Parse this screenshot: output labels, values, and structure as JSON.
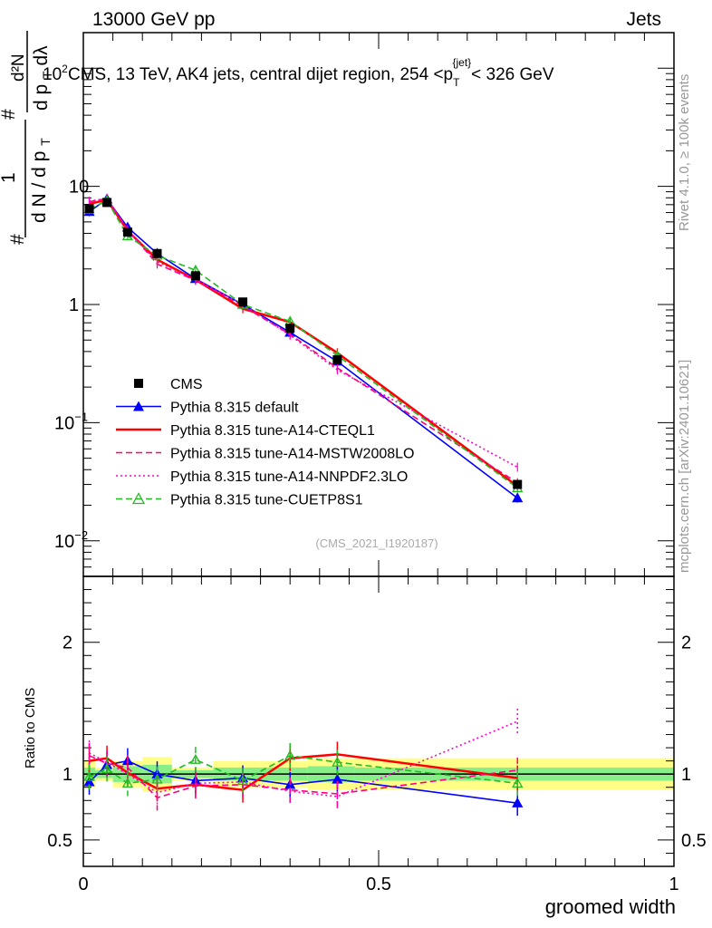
{
  "header": {
    "left": "13000 GeV pp",
    "right": "Jets"
  },
  "side_labels": {
    "rivet": "Rivet 4.1.0, ≥ 100k events",
    "mcplots": "mcplots.cern.ch [arXiv:2401.10621]"
  },
  "chart_data": {
    "type": "line",
    "title": "CMS, 13 TeV, AK4 jets, central dijet region, 254 <p_T^{jet}< 326 GeV",
    "title_parts": {
      "prefix": "CMS, 13 TeV, AK4 jets, central dijet region, 254 <p",
      "sub": "T",
      "sup": "{jet}",
      "suffix": "< 326 GeV"
    },
    "ylabel_top": {
      "numerator": "1",
      "denominator": "d N / d p",
      "denominator_sub": "T",
      "hash": "#",
      "dnum": "d²N",
      "dden": "d p",
      "dden_sub": "T",
      "dden_tail": " dλ"
    },
    "ylabel_ratio": "Ratio to CMS",
    "xlabel": "groomed width",
    "analysis_id": "(CMS_2021_I1920187)",
    "xlim": [
      0,
      1
    ],
    "ylim_log": [
      0.005,
      200
    ],
    "ratio_ylim": [
      0.3,
      2.5
    ],
    "x_ticks": [
      {
        "value": 0,
        "label": "0"
      },
      {
        "value": 0.5,
        "label": "0.5"
      },
      {
        "value": 1,
        "label": "1"
      }
    ],
    "y_ticks": [
      {
        "value": 0.01,
        "base": "10",
        "exp": "−2"
      },
      {
        "value": 0.1,
        "base": "10",
        "exp": "−1"
      },
      {
        "value": 1,
        "base": "1",
        "exp": ""
      },
      {
        "value": 10,
        "base": "10",
        "exp": ""
      },
      {
        "value": 100,
        "base": "10",
        "exp": "2"
      }
    ],
    "ratio_y_ticks": [
      {
        "value": 0.5,
        "label": "0.5"
      },
      {
        "value": 1,
        "label": "1"
      },
      {
        "value": 2,
        "label": "2"
      }
    ],
    "x_edges": [
      0,
      0.02,
      0.05,
      0.1,
      0.15,
      0.22,
      0.3,
      0.38,
      0.46,
      1.0
    ],
    "x": [
      0.01,
      0.04,
      0.075,
      0.125,
      0.19,
      0.27,
      0.35,
      0.43,
      0.735
    ],
    "band_green_halfwidth": [
      0.05,
      0.03,
      0.06,
      0.07,
      0.03,
      0.05,
      0.05,
      0.06,
      0.05
    ],
    "band_yellow_halfwidth": [
      0.1,
      0.05,
      0.1,
      0.13,
      0.05,
      0.1,
      0.1,
      0.12,
      0.12
    ],
    "data": {
      "name": "CMS",
      "values": [
        6.5,
        7.3,
        4.1,
        2.7,
        1.75,
        1.05,
        0.63,
        0.34,
        0.03
      ]
    },
    "series": [
      {
        "name": "Pythia 8.315 default",
        "color": "#0000ff",
        "style": "solid",
        "marker": "triangle",
        "values": [
          6.1,
          7.8,
          4.5,
          2.7,
          1.65,
          1.0,
          0.58,
          0.33,
          0.023
        ]
      },
      {
        "name": "Pythia 8.315 tune-A14-CTEQL1",
        "color": "#ff0000",
        "style": "solid",
        "marker": "none",
        "values": [
          7.1,
          7.7,
          4.2,
          2.4,
          1.62,
          0.92,
          0.71,
          0.39,
          0.029
        ]
      },
      {
        "name": "Pythia 8.315 tune-A14-MSTW2008LO",
        "color": "#ff0077",
        "style": "dashed",
        "marker": "none",
        "values": [
          7.4,
          7.9,
          4.3,
          2.2,
          1.6,
          0.97,
          0.56,
          0.29,
          0.031
        ]
      },
      {
        "name": "Pythia 8.315 tune-A14-NNPDF2.3LO",
        "color": "#ff00cc",
        "style": "dotted",
        "marker": "none",
        "values": [
          7.5,
          7.9,
          4.2,
          2.3,
          1.63,
          1.0,
          0.55,
          0.28,
          0.042
        ]
      },
      {
        "name": "Pythia 8.315 tune-CUETP8S1",
        "color": "#22bb22",
        "style": "dashed",
        "marker": "open-triangle",
        "values": [
          6.4,
          7.6,
          3.8,
          2.6,
          1.95,
          1.0,
          0.72,
          0.37,
          0.028
        ]
      }
    ],
    "ratios": {
      "Pythia 8.315 default": [
        0.94,
        1.07,
        1.1,
        1.0,
        0.95,
        0.97,
        0.92,
        0.96,
        0.78
      ],
      "Pythia 8.315 tune-A14-CTEQL1": [
        1.1,
        1.12,
        1.01,
        0.89,
        0.92,
        0.88,
        1.12,
        1.15,
        0.97
      ],
      "Pythia 8.315 tune-A14-MSTW2008LO": [
        1.14,
        1.08,
        1.05,
        0.82,
        0.91,
        0.92,
        0.88,
        0.85,
        1.03
      ],
      "Pythia 8.315 tune-A14-NNPDF2.3LO": [
        1.16,
        1.09,
        1.0,
        0.86,
        0.93,
        0.94,
        0.87,
        0.83,
        1.4
      ],
      "Pythia 8.315 tune-CUETP8S1": [
        0.98,
        1.04,
        0.93,
        0.96,
        1.11,
        0.95,
        1.14,
        1.09,
        0.93
      ]
    }
  }
}
